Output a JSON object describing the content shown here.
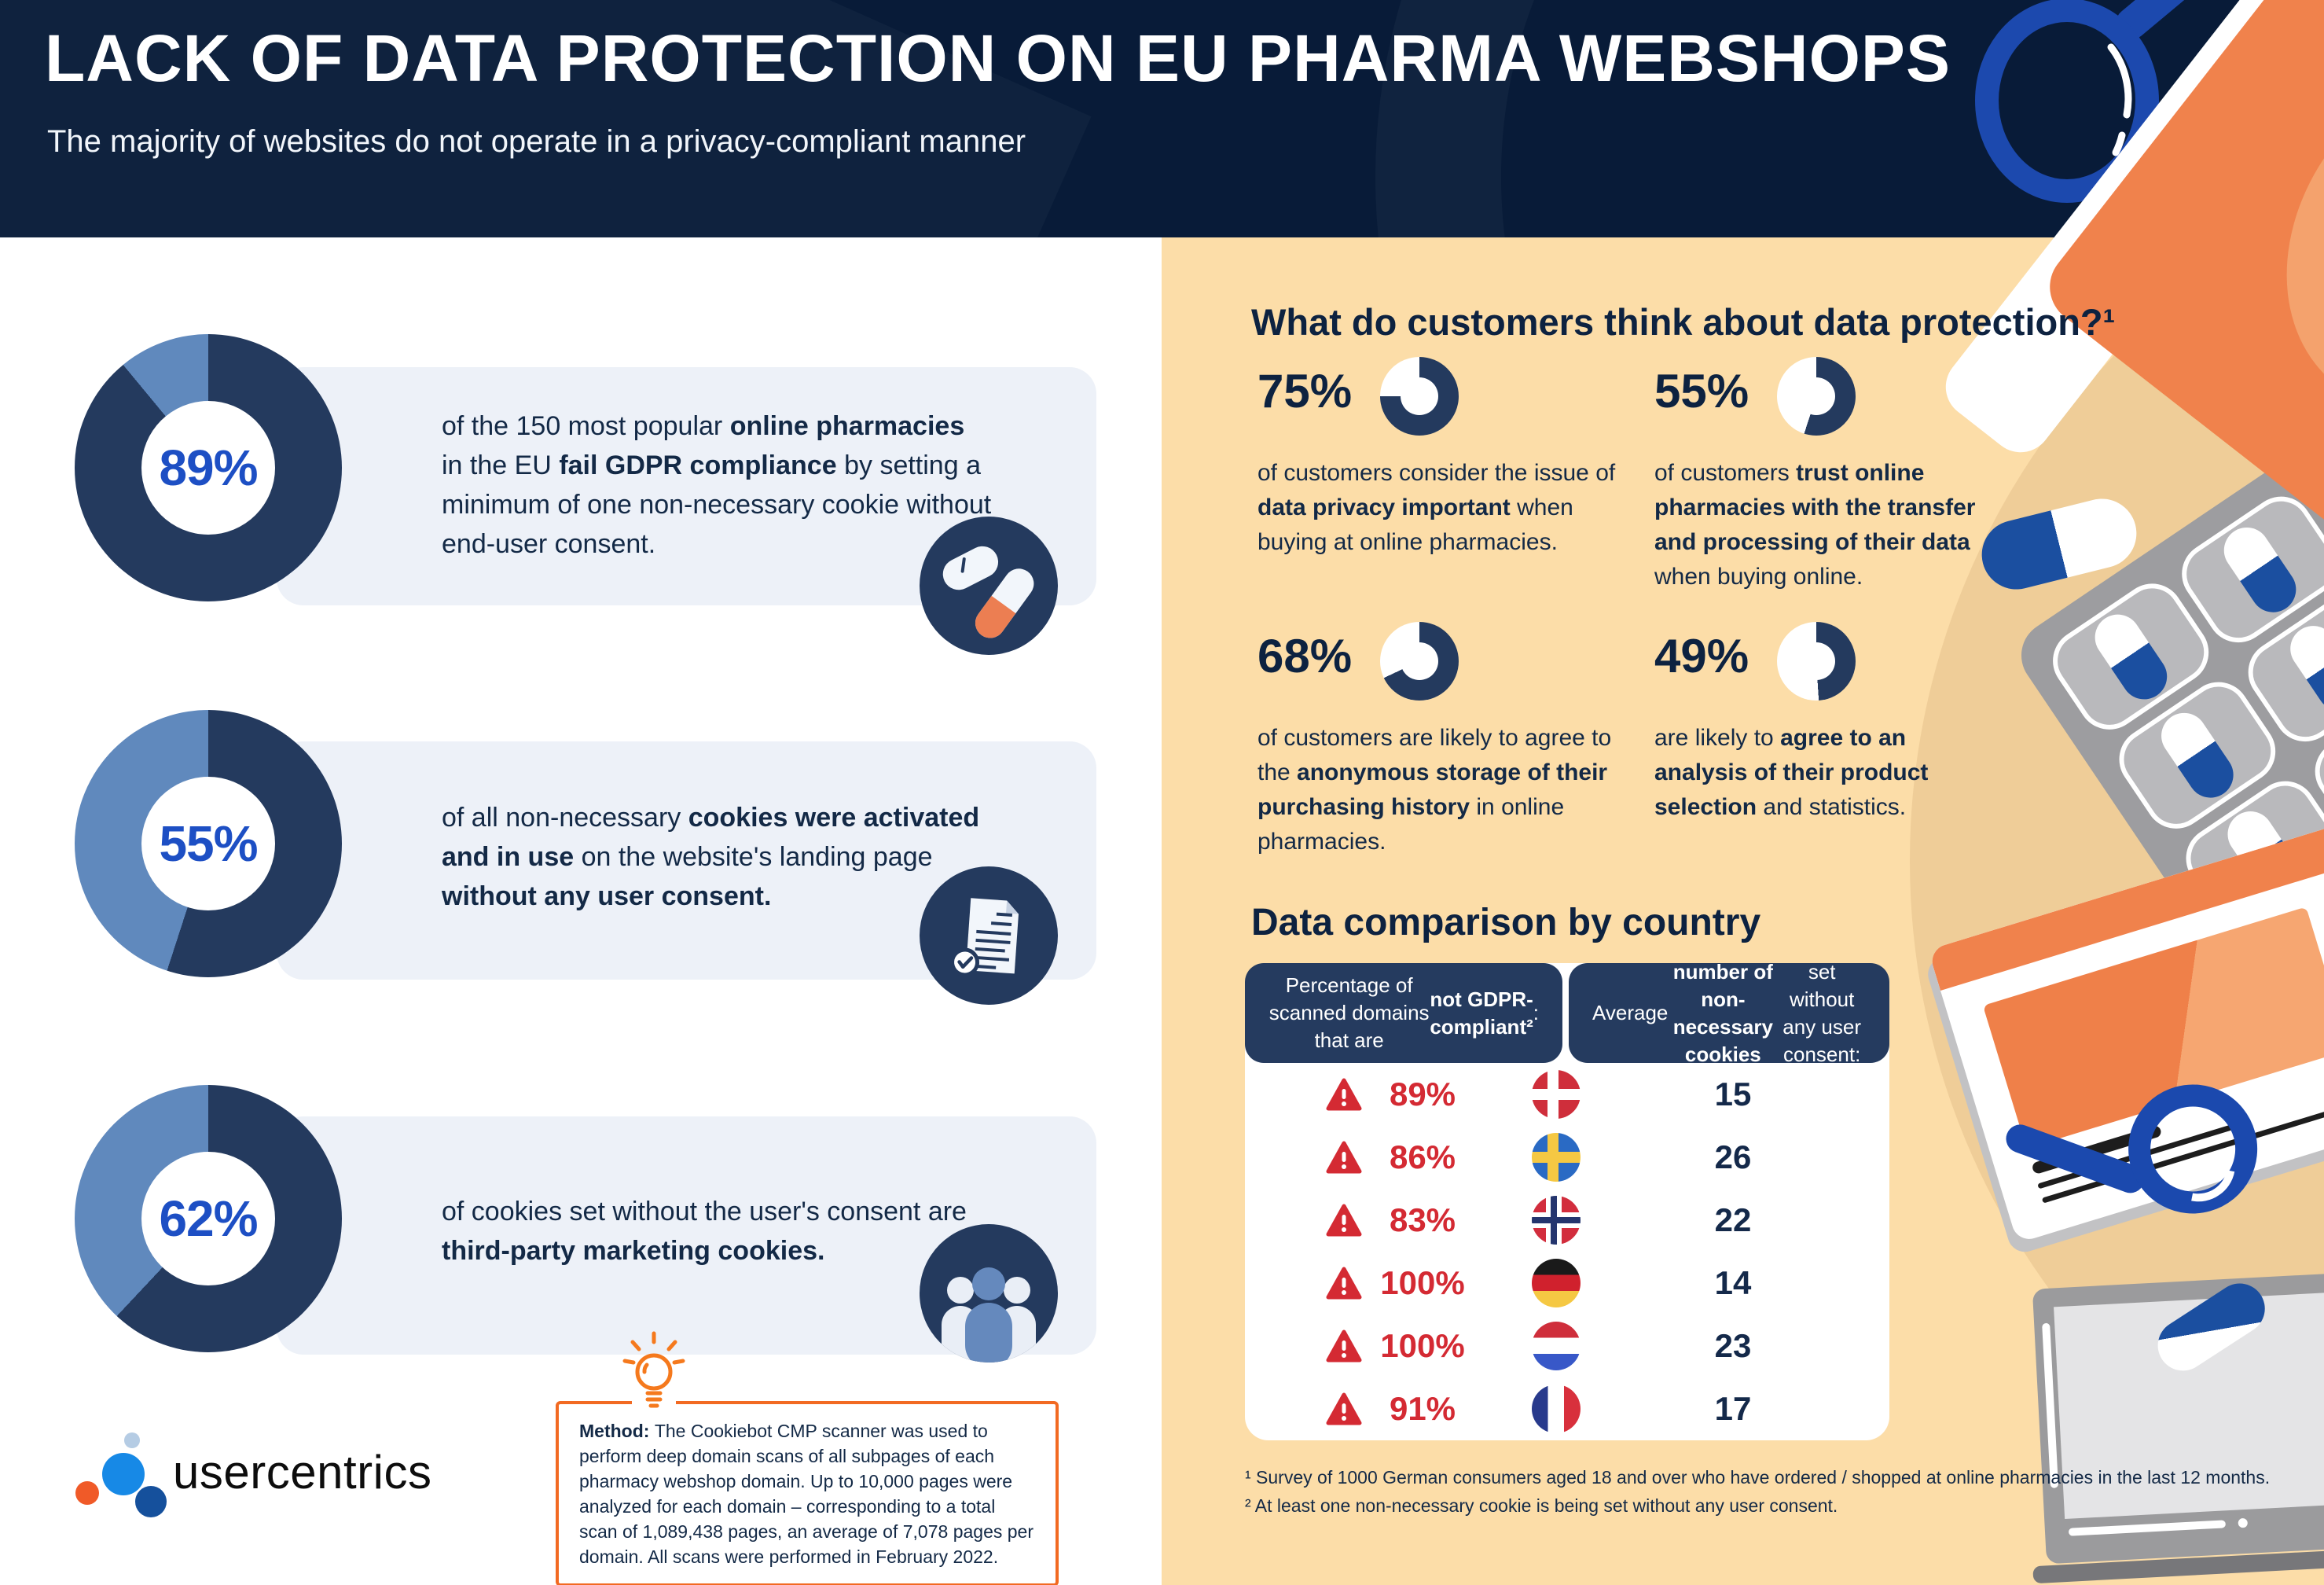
{
  "header": {
    "title": "LACK OF DATA PROTECTION ON EU PHARMA WEBSHOPS",
    "subtitle": "The majority of websites do not operate in a privacy-compliant manner"
  },
  "left_stats": [
    {
      "percent": "89%",
      "value": 89,
      "icon": "pill-capsule-icon",
      "text": [
        {
          "t": "of the 150 most popular "
        },
        {
          "t": "online pharmacies",
          "b": true
        },
        {
          "t": " in the EU "
        },
        {
          "t": "fail GDPR compliance",
          "b": true
        },
        {
          "t": " by setting a minimum of one non-necessary cookie without end-user consent."
        }
      ]
    },
    {
      "percent": "55%",
      "value": 55,
      "icon": "document-check-icon",
      "text": [
        {
          "t": "of all non-necessary "
        },
        {
          "t": "cookies were activated and in use",
          "b": true
        },
        {
          "t": " on the website's landing page "
        },
        {
          "t": "without any user consent.",
          "b": true
        }
      ]
    },
    {
      "percent": "62%",
      "value": 62,
      "icon": "people-icon",
      "text": [
        {
          "t": "of cookies set without the user's consent are "
        },
        {
          "t": "third-party marketing cookies.",
          "b": true
        }
      ]
    }
  ],
  "customer_section": {
    "heading": "What do customers think about data protection?¹",
    "stats": [
      {
        "percent": "75%",
        "value": 75,
        "text": [
          {
            "t": "of customers consider the issue of "
          },
          {
            "t": "data privacy important",
            "b": true
          },
          {
            "t": " when buying at online pharmacies."
          }
        ]
      },
      {
        "percent": "55%",
        "value": 55,
        "text": [
          {
            "t": "of customers "
          },
          {
            "t": "trust online pharmacies with the transfer and processing of their data",
            "b": true
          },
          {
            "t": " when buying online."
          }
        ]
      },
      {
        "percent": "68%",
        "value": 68,
        "text": [
          {
            "t": "of customers are likely to agree to the "
          },
          {
            "t": "anonymous storage of their purchasing history",
            "b": true
          },
          {
            "t": " in online pharmacies."
          }
        ]
      },
      {
        "percent": "49%",
        "value": 49,
        "text": [
          {
            "t": "are likely to "
          },
          {
            "t": "agree to an analysis of their product selection",
            "b": true
          },
          {
            "t": " and statistics."
          }
        ]
      }
    ]
  },
  "comparison": {
    "heading": "Data comparison by country",
    "col1_header": [
      {
        "t": "Percentage of scanned domains that are "
      },
      {
        "t": "not GDPR-compliant²",
        "b": true
      },
      {
        "t": ":"
      }
    ],
    "col2_header": [
      {
        "t": "Average "
      },
      {
        "t": "number of non-necessary cookies",
        "b": true
      },
      {
        "t": " set without any user consent:"
      }
    ],
    "rows": [
      {
        "percent": "89%",
        "country": "Denmark",
        "cookies": "15"
      },
      {
        "percent": "86%",
        "country": "Sweden",
        "cookies": "26"
      },
      {
        "percent": "83%",
        "country": "Norway",
        "cookies": "22"
      },
      {
        "percent": "100%",
        "country": "Germany",
        "cookies": "14"
      },
      {
        "percent": "100%",
        "country": "Netherlands",
        "cookies": "23"
      },
      {
        "percent": "91%",
        "country": "France",
        "cookies": "17"
      }
    ]
  },
  "footnotes": [
    "¹ Survey of 1000 German consumers aged 18 and over who have ordered / shopped at online pharmacies in the last 12 months.",
    "² At least one non-necessary cookie is being set without any user consent."
  ],
  "method": [
    {
      "t": "Method: ",
      "b": true
    },
    {
      "t": "The Cookiebot CMP scanner was used to perform deep domain scans of all subpages of each pharmacy webshop domain. Up to 10,000 pages were analyzed for each domain – corresponding to a total scan of 1,089,438 pages, an average of 7,078 pages per domain. All scans were performed in February 2022."
    }
  ],
  "logo": {
    "text": "usercentrics"
  },
  "colors": {
    "header_navy": "#081b38",
    "navy": "#243a5e",
    "steel_blue": "#6089bd",
    "royal_blue": "#1d4fc4",
    "peach": "#fcdda8",
    "tan": "#efcd98",
    "orange": "#f0824c",
    "orange_accent": "#f5791d",
    "red": "#d42a33",
    "card_bg": "#edf1f8",
    "pill_blue": "#1b4fa0"
  },
  "chart_data": [
    {
      "type": "pie",
      "title": "Of the 150 most popular online pharmacies in the EU fail GDPR compliance",
      "labels": [
        "fail GDPR compliance",
        "other"
      ],
      "values": [
        89,
        11
      ],
      "unit": "%"
    },
    {
      "type": "pie",
      "title": "Non-necessary cookies activated and in use on landing page without any user consent",
      "labels": [
        "activated without consent",
        "other"
      ],
      "values": [
        55,
        45
      ],
      "unit": "%"
    },
    {
      "type": "pie",
      "title": "Cookies set without the user's consent that are third-party marketing cookies",
      "labels": [
        "third-party marketing",
        "other"
      ],
      "values": [
        62,
        38
      ],
      "unit": "%"
    },
    {
      "type": "pie",
      "title": "Customers considering data privacy important when buying at online pharmacies",
      "labels": [
        "consider important",
        "other"
      ],
      "values": [
        75,
        25
      ],
      "unit": "%"
    },
    {
      "type": "pie",
      "title": "Customers trusting online pharmacies with transfer and processing of their data",
      "labels": [
        "trust",
        "other"
      ],
      "values": [
        55,
        45
      ],
      "unit": "%"
    },
    {
      "type": "pie",
      "title": "Customers likely to agree to anonymous storage of their purchasing history",
      "labels": [
        "agree",
        "other"
      ],
      "values": [
        68,
        32
      ],
      "unit": "%"
    },
    {
      "type": "pie",
      "title": "Customers likely to agree to an analysis of their product selection and statistics",
      "labels": [
        "agree",
        "other"
      ],
      "values": [
        49,
        51
      ],
      "unit": "%"
    },
    {
      "type": "table",
      "title": "Data comparison by country",
      "columns": [
        "Country",
        "Percentage of scanned domains that are not GDPR-compliant",
        "Average number of non-necessary cookies set without any user consent"
      ],
      "rows": [
        [
          "Denmark",
          "89%",
          15
        ],
        [
          "Sweden",
          "86%",
          26
        ],
        [
          "Norway",
          "83%",
          22
        ],
        [
          "Germany",
          "100%",
          14
        ],
        [
          "Netherlands",
          "100%",
          23
        ],
        [
          "France",
          "91%",
          17
        ]
      ]
    }
  ]
}
